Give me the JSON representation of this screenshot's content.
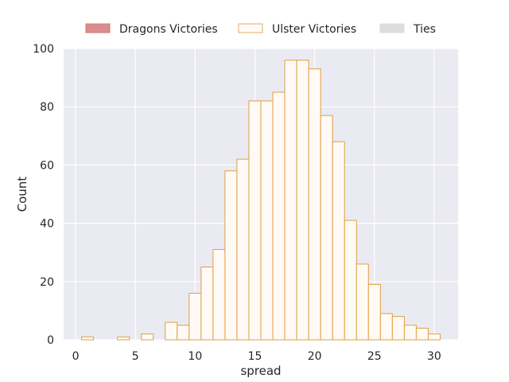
{
  "chart_data": {
    "type": "bar",
    "subtype": "histogram",
    "xlabel": "spread",
    "ylabel": "Count",
    "xlim": [
      -1,
      32
    ],
    "ylim": [
      0,
      100
    ],
    "xticks": [
      0,
      5,
      10,
      15,
      20,
      25,
      30
    ],
    "yticks": [
      0,
      20,
      40,
      60,
      80,
      100
    ],
    "bin_width": 1,
    "grid": true,
    "legend_position": "top-center",
    "legend": [
      {
        "name": "Dragons Victories",
        "color": "#dc8c8c",
        "edge": "#d07a7a"
      },
      {
        "name": "Ulster Victories",
        "color": "#fffaf5",
        "edge": "#e0b060"
      },
      {
        "name": "Ties",
        "color": "#dddddd",
        "edge": "#dddddd"
      }
    ],
    "series": [
      {
        "name": "Ulster Victories",
        "bins": [
          {
            "x": 1,
            "count": 1
          },
          {
            "x": 4,
            "count": 1
          },
          {
            "x": 6,
            "count": 2
          },
          {
            "x": 8,
            "count": 6
          },
          {
            "x": 9,
            "count": 5
          },
          {
            "x": 10,
            "count": 16
          },
          {
            "x": 11,
            "count": 25
          },
          {
            "x": 12,
            "count": 31
          },
          {
            "x": 13,
            "count": 58
          },
          {
            "x": 14,
            "count": 62
          },
          {
            "x": 15,
            "count": 82
          },
          {
            "x": 16,
            "count": 82
          },
          {
            "x": 17,
            "count": 85
          },
          {
            "x": 18,
            "count": 96
          },
          {
            "x": 19,
            "count": 96
          },
          {
            "x": 20,
            "count": 93
          },
          {
            "x": 21,
            "count": 77
          },
          {
            "x": 22,
            "count": 68
          },
          {
            "x": 23,
            "count": 41
          },
          {
            "x": 24,
            "count": 26
          },
          {
            "x": 25,
            "count": 19
          },
          {
            "x": 26,
            "count": 9
          },
          {
            "x": 27,
            "count": 8
          },
          {
            "x": 28,
            "count": 5
          },
          {
            "x": 29,
            "count": 4
          },
          {
            "x": 30,
            "count": 2
          }
        ]
      }
    ]
  },
  "colors": {
    "plot_background": "#eaeaf2",
    "grid": "#ffffff",
    "bar_fill": "#fffaf5",
    "bar_edge": "#e0a040"
  }
}
